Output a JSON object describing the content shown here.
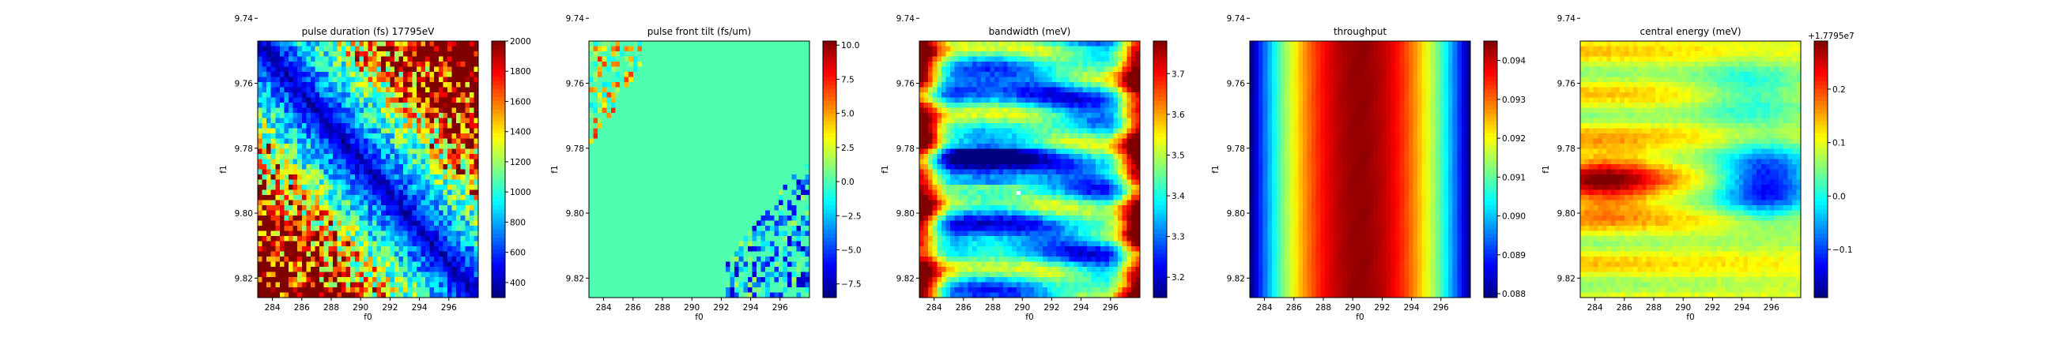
{
  "chart_data": [
    {
      "type": "heatmap",
      "title": "pulse duration (fs) 17795eV",
      "xlabel": "f0",
      "ylabel": "f1",
      "x_range": [
        283,
        298
      ],
      "y_range": [
        9.747,
        9.826
      ],
      "x_ticks": [
        "284",
        "286",
        "288",
        "290",
        "292",
        "294",
        "296"
      ],
      "y_ticks": [
        "9.74",
        "9.76",
        "9.78",
        "9.80",
        "9.82"
      ],
      "colorbar": {
        "min": 300,
        "max": 2000,
        "ticks": [
          "400",
          "600",
          "800",
          "1000",
          "1200",
          "1400",
          "1600",
          "1800",
          "2000"
        ],
        "tick_values": [
          400,
          600,
          800,
          1000,
          1200,
          1400,
          1600,
          1800,
          2000
        ],
        "offset_text": "",
        "colormap": "jet"
      },
      "pattern": "diagonal_valley",
      "grid": false
    },
    {
      "type": "heatmap",
      "title": "pulse front tilt (fs/um)",
      "xlabel": "f0",
      "ylabel": "f1",
      "x_range": [
        283,
        298
      ],
      "y_range": [
        9.747,
        9.826
      ],
      "x_ticks": [
        "284",
        "286",
        "288",
        "290",
        "292",
        "294",
        "296"
      ],
      "y_ticks": [
        "9.74",
        "9.76",
        "9.78",
        "9.80",
        "9.82"
      ],
      "colorbar": {
        "min": -8.5,
        "max": 10.3,
        "ticks": [
          "10.0",
          "7.5",
          "5.0",
          "2.5",
          "0.0",
          "−2.5",
          "−5.0",
          "−7.5"
        ],
        "tick_values": [
          10,
          7.5,
          5,
          2.5,
          0,
          -2.5,
          -5,
          -7.5
        ],
        "offset_text": "",
        "colormap": "jet"
      },
      "pattern": "flat_with_noisy_corners",
      "grid": false
    },
    {
      "type": "heatmap",
      "title": "bandwidth (meV)",
      "xlabel": "f0",
      "ylabel": "f1",
      "x_range": [
        283,
        298
      ],
      "y_range": [
        9.747,
        9.826
      ],
      "x_ticks": [
        "284",
        "286",
        "288",
        "290",
        "292",
        "294",
        "296"
      ],
      "y_ticks": [
        "9.74",
        "9.76",
        "9.78",
        "9.80",
        "9.82"
      ],
      "colorbar": {
        "min": 3.15,
        "max": 3.78,
        "ticks": [
          "3.7",
          "3.6",
          "3.5",
          "3.4",
          "3.3",
          "3.2"
        ],
        "tick_values": [
          3.7,
          3.6,
          3.5,
          3.4,
          3.3,
          3.2
        ],
        "offset_text": "",
        "colormap": "jet"
      },
      "pattern": "horizontal_bands_high_edges",
      "grid": false
    },
    {
      "type": "heatmap",
      "title": "throughput",
      "xlabel": "f0",
      "ylabel": "f1",
      "x_range": [
        283,
        298
      ],
      "y_range": [
        9.747,
        9.826
      ],
      "x_ticks": [
        "284",
        "286",
        "288",
        "290",
        "292",
        "294",
        "296"
      ],
      "y_ticks": [
        "9.74",
        "9.76",
        "9.78",
        "9.80",
        "9.82"
      ],
      "colorbar": {
        "min": 0.0879,
        "max": 0.0945,
        "ticks": [
          "0.094",
          "0.093",
          "0.092",
          "0.091",
          "0.090",
          "0.089",
          "0.088"
        ],
        "tick_values": [
          0.094,
          0.093,
          0.092,
          0.091,
          0.09,
          0.089,
          0.088
        ],
        "offset_text": "",
        "colormap": "jet"
      },
      "pattern": "vertical_peak_at_f0_290.5",
      "grid": false
    },
    {
      "type": "heatmap",
      "title": "central energy (meV)",
      "xlabel": "f0",
      "ylabel": "f1",
      "x_range": [
        283,
        298
      ],
      "y_range": [
        9.747,
        9.826
      ],
      "x_ticks": [
        "284",
        "286",
        "288",
        "290",
        "292",
        "294",
        "296"
      ],
      "y_ticks": [
        "9.74",
        "9.76",
        "9.78",
        "9.80",
        "9.82"
      ],
      "colorbar": {
        "min": -0.19,
        "max": 0.29,
        "ticks": [
          "0.2",
          "0.1",
          "0.0",
          "−0.1"
        ],
        "tick_values": [
          0.2,
          0.1,
          0,
          -0.1
        ],
        "offset_text": "+1.7795e7",
        "colormap": "jet"
      },
      "pattern": "red_left_blue_right_lobes",
      "grid": false
    }
  ]
}
